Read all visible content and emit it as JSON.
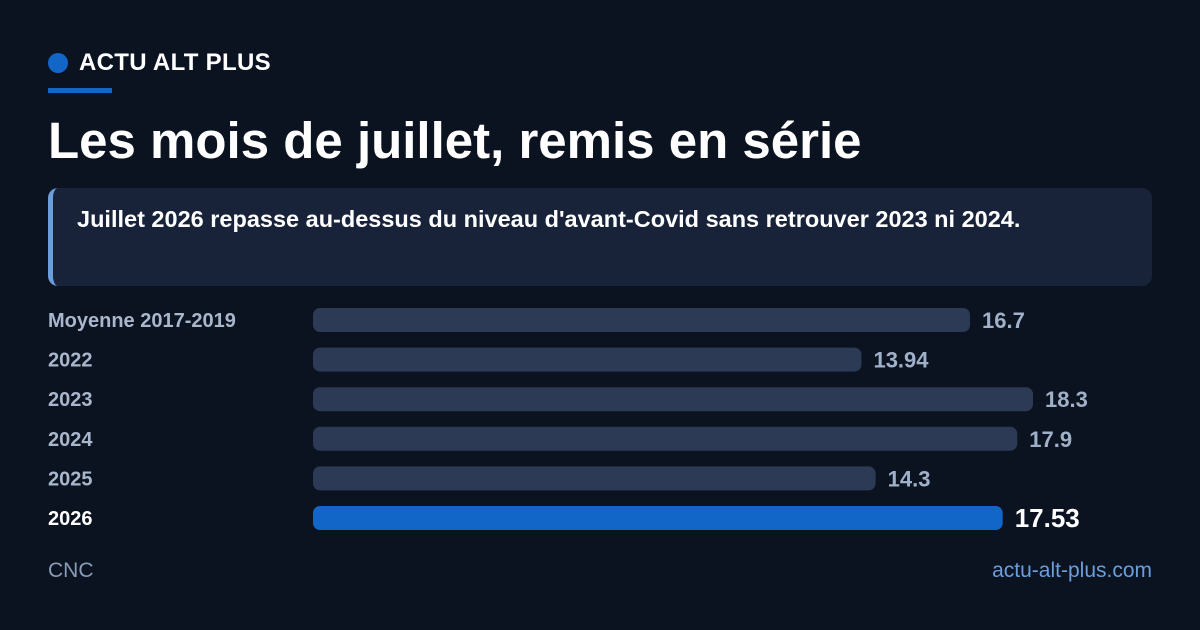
{
  "brand": {
    "name": "ACTU ALT PLUS"
  },
  "headline": {
    "title": "Les mois de juillet, remis en série",
    "subtitle": "Juillet 2026 repasse au-dessus du niveau d'avant-Covid sans retrouver 2023 ni 2024."
  },
  "chart_data": {
    "type": "bar",
    "orientation": "horizontal",
    "title": "",
    "xlabel": "",
    "ylabel": "",
    "categories": [
      "Moyenne 2017-2019",
      "2022",
      "2023",
      "2024",
      "2025",
      "2026"
    ],
    "values": [
      16.7,
      13.94,
      18.3,
      17.9,
      14.3,
      17.53
    ],
    "value_labels": [
      "16.7",
      "13.94",
      "18.3",
      "17.9",
      "14.3",
      "17.53"
    ],
    "highlight_index": 5,
    "grid": false,
    "legend": "none",
    "colors": {
      "bar": "#2c3a55",
      "highlight": "#1266c8",
      "label": "#a9b7cc",
      "value": "#9fb0c8",
      "highlight_text": "#ffffff"
    }
  },
  "footer": {
    "source": "CNC",
    "site": "actu-alt-plus.com"
  }
}
